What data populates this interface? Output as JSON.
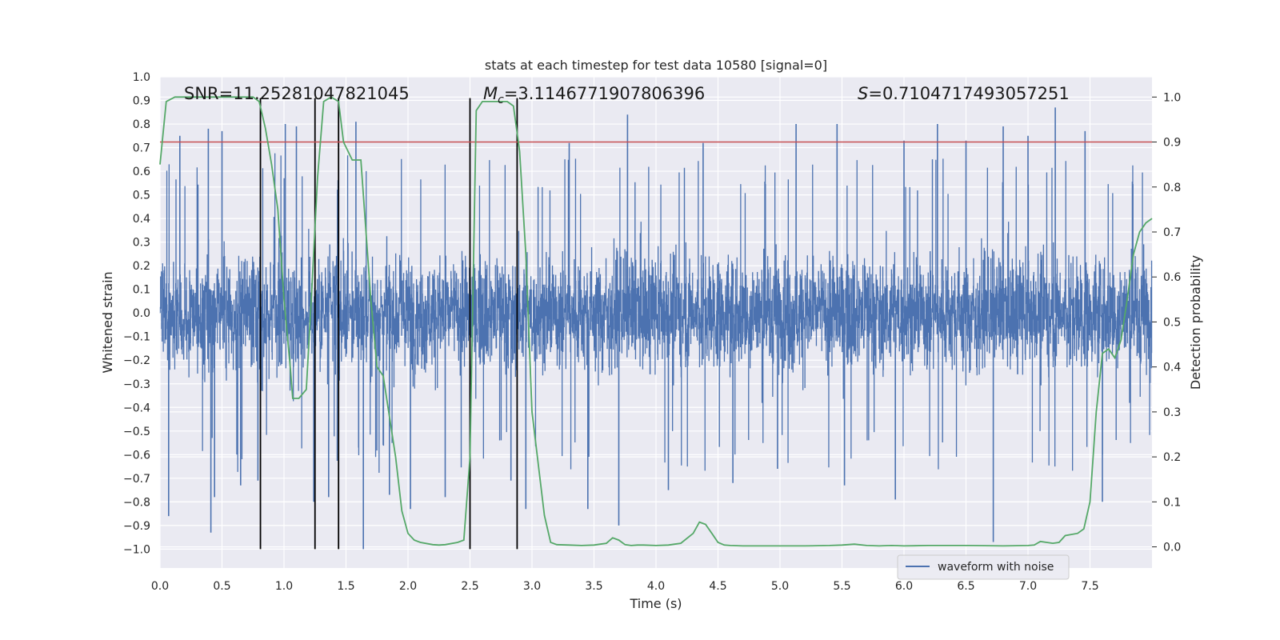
{
  "chart_data": {
    "type": "line",
    "title": "stats at each timestep for test data 10580 [signal=0]",
    "xlabel": "Time (s)",
    "ylabel_left": "Whitened strain",
    "ylabel_right": "Detection probability",
    "xlim": [
      0.0,
      8.0
    ],
    "ylim_left": [
      -1.08,
      1.0
    ],
    "ylim_right": [
      -0.047,
      1.045
    ],
    "x_ticks": [
      "0.0",
      "0.5",
      "1.0",
      "1.5",
      "2.0",
      "2.5",
      "3.0",
      "3.5",
      "4.0",
      "4.5",
      "5.0",
      "5.5",
      "6.0",
      "6.5",
      "7.0",
      "7.5"
    ],
    "y_ticks_left": [
      "1.0",
      "0.9",
      "0.8",
      "0.7",
      "0.6",
      "0.5",
      "0.4",
      "0.3",
      "0.2",
      "0.1",
      "0.0",
      "−0.1",
      "−0.2",
      "−0.3",
      "−0.4",
      "−0.5",
      "−0.6",
      "−0.7",
      "−0.8",
      "−0.9",
      "−1.0"
    ],
    "y_ticks_right": [
      "1.0",
      "0.9",
      "0.8",
      "0.7",
      "0.6",
      "0.5",
      "0.4",
      "0.3",
      "0.2",
      "0.1",
      "0.0"
    ],
    "grid": true,
    "legend": {
      "placement": "lower-right",
      "entries": [
        "waveform with noise"
      ]
    },
    "annotations": {
      "snr": "SNR=11.25281047821045",
      "mc_sym": "M",
      "mc_sub": "c",
      "mc_val": "=3.1146771907806396",
      "s_sym": "S",
      "s_val": "=0.7104717493057251"
    },
    "threshold": {
      "value": 0.9,
      "axis": "right",
      "color": "#c44e52"
    },
    "vertical_lines": [
      0.81,
      1.25,
      1.44,
      2.5,
      2.88
    ],
    "vertical_line_range": [
      -1.0,
      0.91
    ],
    "waveform": {
      "name": "waveform with noise",
      "color": "#4c72b0",
      "duration": 8.0,
      "sample_rate_points": 4000,
      "typical_abs_max": 0.45,
      "spikes": [
        {
          "x": 0.07,
          "y": -0.86
        },
        {
          "x": 0.16,
          "y": 0.75
        },
        {
          "x": 0.39,
          "y": 0.78
        },
        {
          "x": 0.41,
          "y": -0.93
        },
        {
          "x": 0.44,
          "y": -0.78
        },
        {
          "x": 0.5,
          "y": 0.77
        },
        {
          "x": 0.65,
          "y": -0.73
        },
        {
          "x": 0.79,
          "y": -0.71
        },
        {
          "x": 1.01,
          "y": 0.8
        },
        {
          "x": 1.1,
          "y": 0.79
        },
        {
          "x": 1.24,
          "y": -0.8
        },
        {
          "x": 1.36,
          "y": -0.78
        },
        {
          "x": 1.58,
          "y": 0.81
        },
        {
          "x": 1.64,
          "y": -1.0
        },
        {
          "x": 1.85,
          "y": -0.77
        },
        {
          "x": 2.02,
          "y": -0.83
        },
        {
          "x": 2.3,
          "y": -0.78
        },
        {
          "x": 2.5,
          "y": -0.63
        },
        {
          "x": 2.83,
          "y": -0.71
        },
        {
          "x": 2.95,
          "y": -0.83
        },
        {
          "x": 3.3,
          "y": 0.72
        },
        {
          "x": 3.45,
          "y": -0.83
        },
        {
          "x": 3.7,
          "y": -0.9
        },
        {
          "x": 3.77,
          "y": 0.84
        },
        {
          "x": 4.1,
          "y": -0.75
        },
        {
          "x": 4.38,
          "y": 0.72
        },
        {
          "x": 4.62,
          "y": -0.72
        },
        {
          "x": 4.98,
          "y": -0.66
        },
        {
          "x": 5.13,
          "y": 0.8
        },
        {
          "x": 5.46,
          "y": 0.8
        },
        {
          "x": 5.52,
          "y": -0.73
        },
        {
          "x": 5.93,
          "y": -0.79
        },
        {
          "x": 6.0,
          "y": 0.73
        },
        {
          "x": 6.27,
          "y": 0.8
        },
        {
          "x": 6.5,
          "y": 0.73
        },
        {
          "x": 6.72,
          "y": -0.97
        },
        {
          "x": 6.8,
          "y": 0.79
        },
        {
          "x": 7.0,
          "y": 0.75
        },
        {
          "x": 7.22,
          "y": 0.87
        },
        {
          "x": 7.46,
          "y": 0.77
        },
        {
          "x": 7.6,
          "y": -0.8
        }
      ]
    },
    "probability": {
      "color": "#55a868",
      "x": [
        0.0,
        0.05,
        0.12,
        0.2,
        0.3,
        0.4,
        0.5,
        0.6,
        0.7,
        0.75,
        0.8,
        0.85,
        0.9,
        0.95,
        1.0,
        1.05,
        1.07,
        1.12,
        1.18,
        1.22,
        1.27,
        1.32,
        1.38,
        1.44,
        1.48,
        1.55,
        1.62,
        1.7,
        1.75,
        1.8,
        1.9,
        1.95,
        2.0,
        2.05,
        2.1,
        2.2,
        2.25,
        2.3,
        2.4,
        2.45,
        2.5,
        2.55,
        2.6,
        2.65,
        2.7,
        2.75,
        2.8,
        2.85,
        2.9,
        2.95,
        3.0,
        3.1,
        3.15,
        3.2,
        3.3,
        3.4,
        3.5,
        3.55,
        3.6,
        3.65,
        3.7,
        3.75,
        3.8,
        3.85,
        3.9,
        4.0,
        4.1,
        4.15,
        4.2,
        4.3,
        4.35,
        4.4,
        4.45,
        4.5,
        4.55,
        4.6,
        4.7,
        4.8,
        4.9,
        5.0,
        5.2,
        5.4,
        5.5,
        5.6,
        5.7,
        5.8,
        5.9,
        6.0,
        6.2,
        6.5,
        6.8,
        7.0,
        7.05,
        7.1,
        7.15,
        7.2,
        7.25,
        7.3,
        7.4,
        7.45,
        7.5,
        7.55,
        7.6,
        7.65,
        7.7,
        7.75,
        7.8,
        7.85,
        7.9,
        7.95,
        8.0
      ],
      "y": [
        0.85,
        0.99,
        1.0,
        1.0,
        1.0,
        1.0,
        1.0,
        1.0,
        1.0,
        1.0,
        0.99,
        0.93,
        0.85,
        0.75,
        0.55,
        0.4,
        0.33,
        0.33,
        0.35,
        0.55,
        0.82,
        0.99,
        1.0,
        0.99,
        0.9,
        0.86,
        0.86,
        0.55,
        0.4,
        0.38,
        0.2,
        0.08,
        0.03,
        0.015,
        0.01,
        0.005,
        0.004,
        0.005,
        0.01,
        0.015,
        0.2,
        0.97,
        0.99,
        0.99,
        0.99,
        0.99,
        0.99,
        0.98,
        0.88,
        0.65,
        0.3,
        0.07,
        0.01,
        0.005,
        0.004,
        0.003,
        0.004,
        0.006,
        0.008,
        0.02,
        0.015,
        0.005,
        0.003,
        0.004,
        0.004,
        0.003,
        0.004,
        0.006,
        0.008,
        0.03,
        0.055,
        0.05,
        0.03,
        0.01,
        0.004,
        0.003,
        0.002,
        0.002,
        0.002,
        0.002,
        0.002,
        0.003,
        0.004,
        0.006,
        0.003,
        0.002,
        0.003,
        0.002,
        0.003,
        0.003,
        0.002,
        0.003,
        0.004,
        0.012,
        0.01,
        0.008,
        0.01,
        0.025,
        0.03,
        0.04,
        0.1,
        0.3,
        0.43,
        0.44,
        0.42,
        0.46,
        0.55,
        0.65,
        0.7,
        0.72,
        0.73
      ]
    }
  }
}
